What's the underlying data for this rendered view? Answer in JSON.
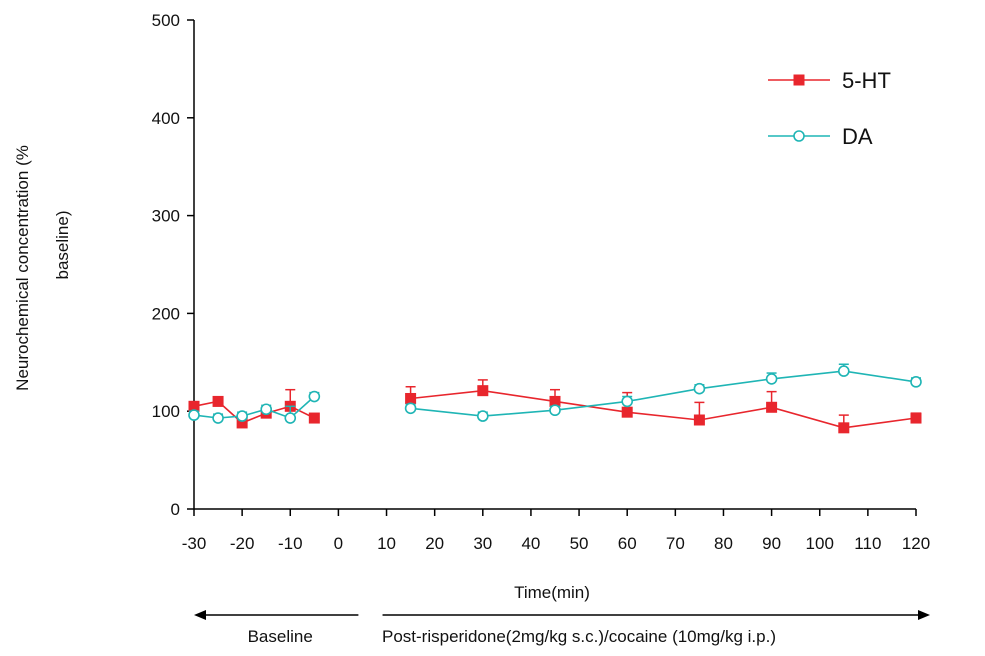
{
  "chart_data": {
    "type": "line",
    "title": "",
    "xlabel": "Time(min)",
    "ylabel_line1": "Neurochemical concentration (%",
    "ylabel_line2": "baseline)",
    "xlim": [
      -30,
      120
    ],
    "ylim": [
      0,
      500
    ],
    "xticks": [
      -30,
      -20,
      -10,
      0,
      10,
      20,
      30,
      40,
      50,
      60,
      70,
      80,
      90,
      100,
      110,
      120
    ],
    "yticks": [
      0,
      100,
      200,
      300,
      400,
      500
    ],
    "grid": false,
    "legend_position": "top-right",
    "series": [
      {
        "name": "5-HT",
        "color": "#e8262d",
        "marker": "filled-square",
        "segments": [
          [
            {
              "x": -30,
              "y": 105,
              "err": 4
            },
            {
              "x": -25,
              "y": 110,
              "err": 4
            },
            {
              "x": -20,
              "y": 88,
              "err": 5
            },
            {
              "x": -15,
              "y": 98,
              "err": 4
            },
            {
              "x": -10,
              "y": 105,
              "err": 17
            },
            {
              "x": -5,
              "y": 93,
              "err": 4
            }
          ],
          [
            {
              "x": 15,
              "y": 113,
              "err": 12
            },
            {
              "x": 30,
              "y": 121,
              "err": 11
            },
            {
              "x": 45,
              "y": 110,
              "err": 12
            },
            {
              "x": 60,
              "y": 99,
              "err": 20
            },
            {
              "x": 75,
              "y": 91,
              "err": 18
            },
            {
              "x": 90,
              "y": 104,
              "err": 16
            },
            {
              "x": 105,
              "y": 83,
              "err": 13
            },
            {
              "x": 120,
              "y": 93,
              "err": 5
            }
          ]
        ]
      },
      {
        "name": "DA",
        "color": "#1fb5b5",
        "marker": "open-circle",
        "segments": [
          [
            {
              "x": -30,
              "y": 96,
              "err": 4
            },
            {
              "x": -25,
              "y": 93,
              "err": 4
            },
            {
              "x": -20,
              "y": 95,
              "err": 4
            },
            {
              "x": -15,
              "y": 102,
              "err": 4
            },
            {
              "x": -10,
              "y": 93,
              "err": 12
            },
            {
              "x": -5,
              "y": 115,
              "err": 4
            }
          ],
          [
            {
              "x": 15,
              "y": 103,
              "err": 4
            },
            {
              "x": 30,
              "y": 95,
              "err": 4
            },
            {
              "x": 45,
              "y": 101,
              "err": 4
            },
            {
              "x": 60,
              "y": 110,
              "err": 5
            },
            {
              "x": 75,
              "y": 123,
              "err": 4
            },
            {
              "x": 90,
              "y": 133,
              "err": 6
            },
            {
              "x": 105,
              "y": 141,
              "err": 7
            },
            {
              "x": 120,
              "y": 130,
              "err": 4
            }
          ]
        ]
      }
    ],
    "phases": [
      {
        "label": "Baseline",
        "from": -30,
        "to": 0
      },
      {
        "label": "Post-risperidone(2mg/kg s.c.)/cocaine (10mg/kg i.p.)",
        "from": 10,
        "to": 120
      }
    ]
  }
}
